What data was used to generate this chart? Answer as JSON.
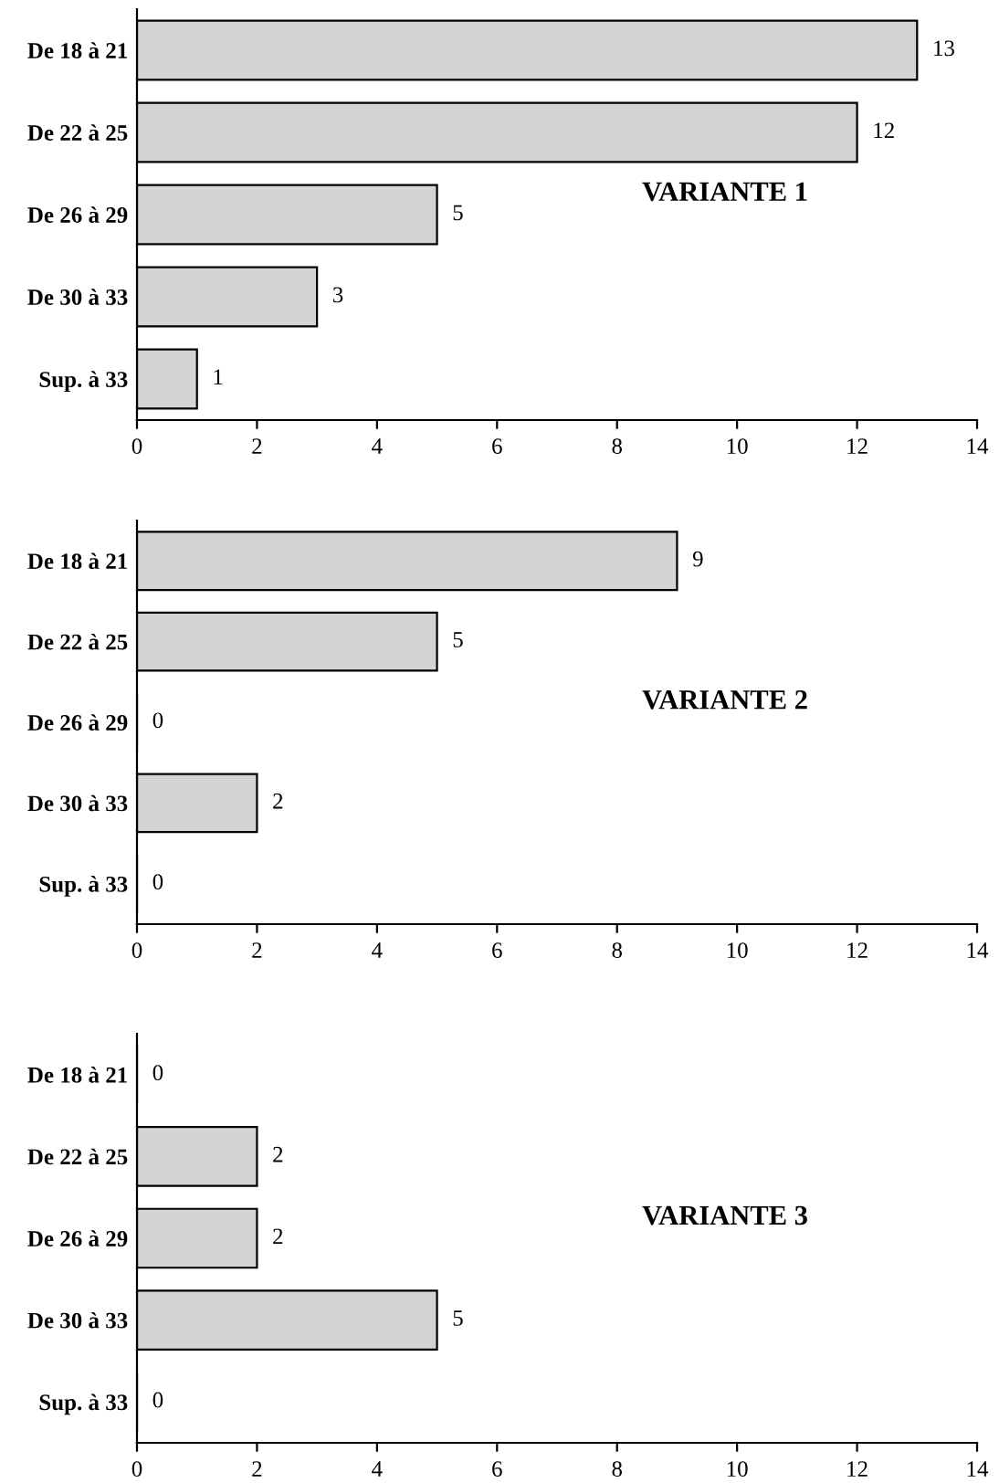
{
  "chart_data": [
    {
      "type": "bar",
      "orientation": "horizontal",
      "title": "VARIANTE 1",
      "categories": [
        "De 18 à 21",
        "De 22 à 25",
        "De 26 à 29",
        "De 30 à 33",
        "Sup. à 33"
      ],
      "values": [
        13,
        12,
        5,
        3,
        1
      ],
      "color": "#d4d4d4",
      "data_labels": true,
      "xlim": [
        0,
        14
      ],
      "xticks": [
        0,
        2,
        4,
        6,
        8,
        10,
        12,
        14
      ],
      "grid": false,
      "legend": false
    },
    {
      "type": "bar",
      "orientation": "horizontal",
      "title": "VARIANTE 2",
      "categories": [
        "De 18 à 21",
        "De 22 à 25",
        "De 26 à 29",
        "De 30 à 33",
        "Sup. à 33"
      ],
      "values": [
        9,
        5,
        0,
        2,
        0
      ],
      "color": "#d4d4d4",
      "data_labels": true,
      "xlim": [
        0,
        14
      ],
      "xticks": [
        0,
        2,
        4,
        6,
        8,
        10,
        12,
        14
      ],
      "grid": false,
      "legend": false
    },
    {
      "type": "bar",
      "orientation": "horizontal",
      "title": "VARIANTE 3",
      "categories": [
        "De 18 à 21",
        "De 22 à 25",
        "De 26 à 29",
        "De 30 à 33",
        "Sup. à 33"
      ],
      "values": [
        0,
        2,
        2,
        5,
        0
      ],
      "color": "#d4d4d4",
      "data_labels": true,
      "xlim": [
        0,
        14
      ],
      "xticks": [
        0,
        2,
        4,
        6,
        8,
        10,
        12,
        14
      ],
      "grid": false,
      "legend": false
    }
  ]
}
